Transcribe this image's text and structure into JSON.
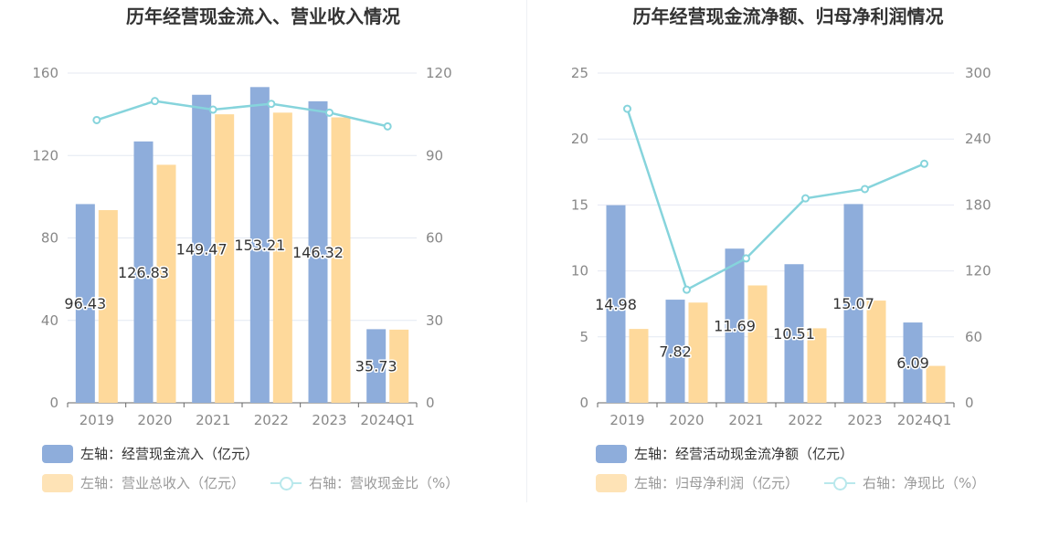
{
  "chart_data": [
    {
      "type": "bar",
      "title": "历年经营现金流入、营业收入情况",
      "categories": [
        "2019",
        "2020",
        "2021",
        "2022",
        "2023",
        "2024Q1"
      ],
      "left_axis": {
        "min": 0,
        "max": 160,
        "ticks": [
          "0",
          "40",
          "80",
          "120",
          "160"
        ]
      },
      "right_axis": {
        "min": 0,
        "max": 120,
        "ticks": [
          "0",
          "30",
          "60",
          "90",
          "120"
        ]
      },
      "series": [
        {
          "name": "左轴：经营现金流入（亿元）",
          "kind": "bar",
          "axis": "left",
          "color": "#8eaddb",
          "values": [
            96.43,
            126.83,
            149.47,
            153.21,
            146.32,
            35.73
          ],
          "labels": [
            "96.43",
            "126.83",
            "149.47",
            "153.21",
            "146.32",
            "35.73"
          ]
        },
        {
          "name": "左轴：营业总收入（亿元）",
          "kind": "bar",
          "axis": "left",
          "color": "#fed99b",
          "values": [
            93.5,
            115.5,
            140.0,
            140.8,
            138.5,
            35.5
          ]
        },
        {
          "name": "右轴：营收现金比（%）",
          "kind": "line",
          "axis": "right",
          "color": "#86d4dc",
          "values": [
            102.9,
            109.8,
            106.7,
            108.8,
            105.6,
            100.6
          ]
        }
      ]
    },
    {
      "type": "bar",
      "title": "历年经营现金流净额、归母净利润情况",
      "categories": [
        "2019",
        "2020",
        "2021",
        "2022",
        "2023",
        "2024Q1"
      ],
      "left_axis": {
        "min": 0,
        "max": 25,
        "ticks": [
          "0",
          "5",
          "10",
          "15",
          "20",
          "25"
        ]
      },
      "right_axis": {
        "min": 0,
        "max": 300,
        "ticks": [
          "0",
          "60",
          "120",
          "180",
          "240",
          "300"
        ]
      },
      "series": [
        {
          "name": "左轴：经营活动现金流净额（亿元）",
          "kind": "bar",
          "axis": "left",
          "color": "#8eaddb",
          "values": [
            14.98,
            7.82,
            11.69,
            10.51,
            15.07,
            6.09
          ],
          "labels": [
            "14.98",
            "7.82",
            "11.69",
            "10.51",
            "15.07",
            "6.09"
          ]
        },
        {
          "name": "左轴：归母净利润（亿元）",
          "kind": "bar",
          "axis": "left",
          "color": "#fed99b",
          "values": [
            5.6,
            7.6,
            8.9,
            5.65,
            7.75,
            2.8
          ]
        },
        {
          "name": "右轴：净现比（%）",
          "kind": "line",
          "axis": "right",
          "color": "#86d4dc",
          "values": [
            267.5,
            102.9,
            131.4,
            186.0,
            194.5,
            217.5
          ]
        }
      ]
    }
  ]
}
